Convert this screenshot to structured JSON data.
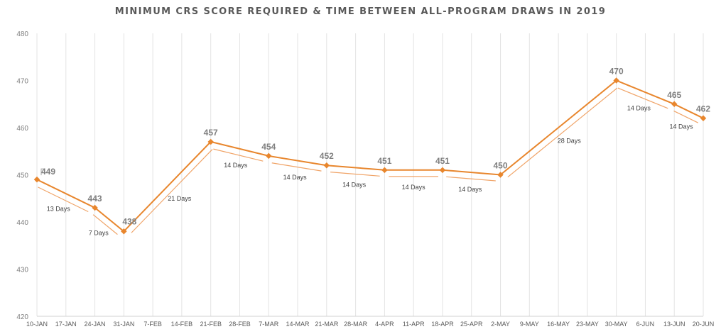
{
  "chart_data": {
    "type": "line",
    "title": "MINIMUM CRS SCORE REQUIRED & TIME BETWEEN ALL-PROGRAM DRAWS IN 2019",
    "xlabel": "",
    "ylabel": "",
    "ylim": [
      420,
      480
    ],
    "yticks": [
      420,
      430,
      440,
      450,
      460,
      470,
      480
    ],
    "grid": "vertical",
    "legend": "none",
    "categories": [
      "10-JAN",
      "17-JAN",
      "24-JAN",
      "31-JAN",
      "7-FEB",
      "14-FEB",
      "21-FEB",
      "28-FEB",
      "7-MAR",
      "14-MAR",
      "21-MAR",
      "28-MAR",
      "4-APR",
      "11-APR",
      "18-APR",
      "25-APR",
      "2-MAY",
      "9-MAY",
      "16-MAY",
      "23-MAY",
      "30-MAY",
      "6-JUN",
      "13-JUN",
      "20-JUN"
    ],
    "series": [
      {
        "color": "#e8862d",
        "points": [
          {
            "x": "10-JAN",
            "y": 449
          },
          {
            "x": "24-JAN",
            "y": 443
          },
          {
            "x": "31-JAN",
            "y": 438
          },
          {
            "x": "21-FEB",
            "y": 457
          },
          {
            "x": "7-MAR",
            "y": 454
          },
          {
            "x": "21-MAR",
            "y": 452
          },
          {
            "x": "4-APR",
            "y": 451
          },
          {
            "x": "18-APR",
            "y": 451
          },
          {
            "x": "2-MAY",
            "y": 450
          },
          {
            "x": "30-MAY",
            "y": 470
          },
          {
            "x": "13-JUN",
            "y": 465
          },
          {
            "x": "20-JUN",
            "y": 462
          }
        ]
      }
    ],
    "annotations": [
      {
        "text": "13 Days"
      },
      {
        "text": "7 Days"
      },
      {
        "text": "21 Days"
      },
      {
        "text": "14 Days"
      },
      {
        "text": "14 Days"
      },
      {
        "text": "14 Days"
      },
      {
        "text": "14 Days"
      },
      {
        "text": "14 Days"
      },
      {
        "text": "28 Days"
      },
      {
        "text": "14 Days"
      },
      {
        "text": "14 Days"
      }
    ]
  }
}
